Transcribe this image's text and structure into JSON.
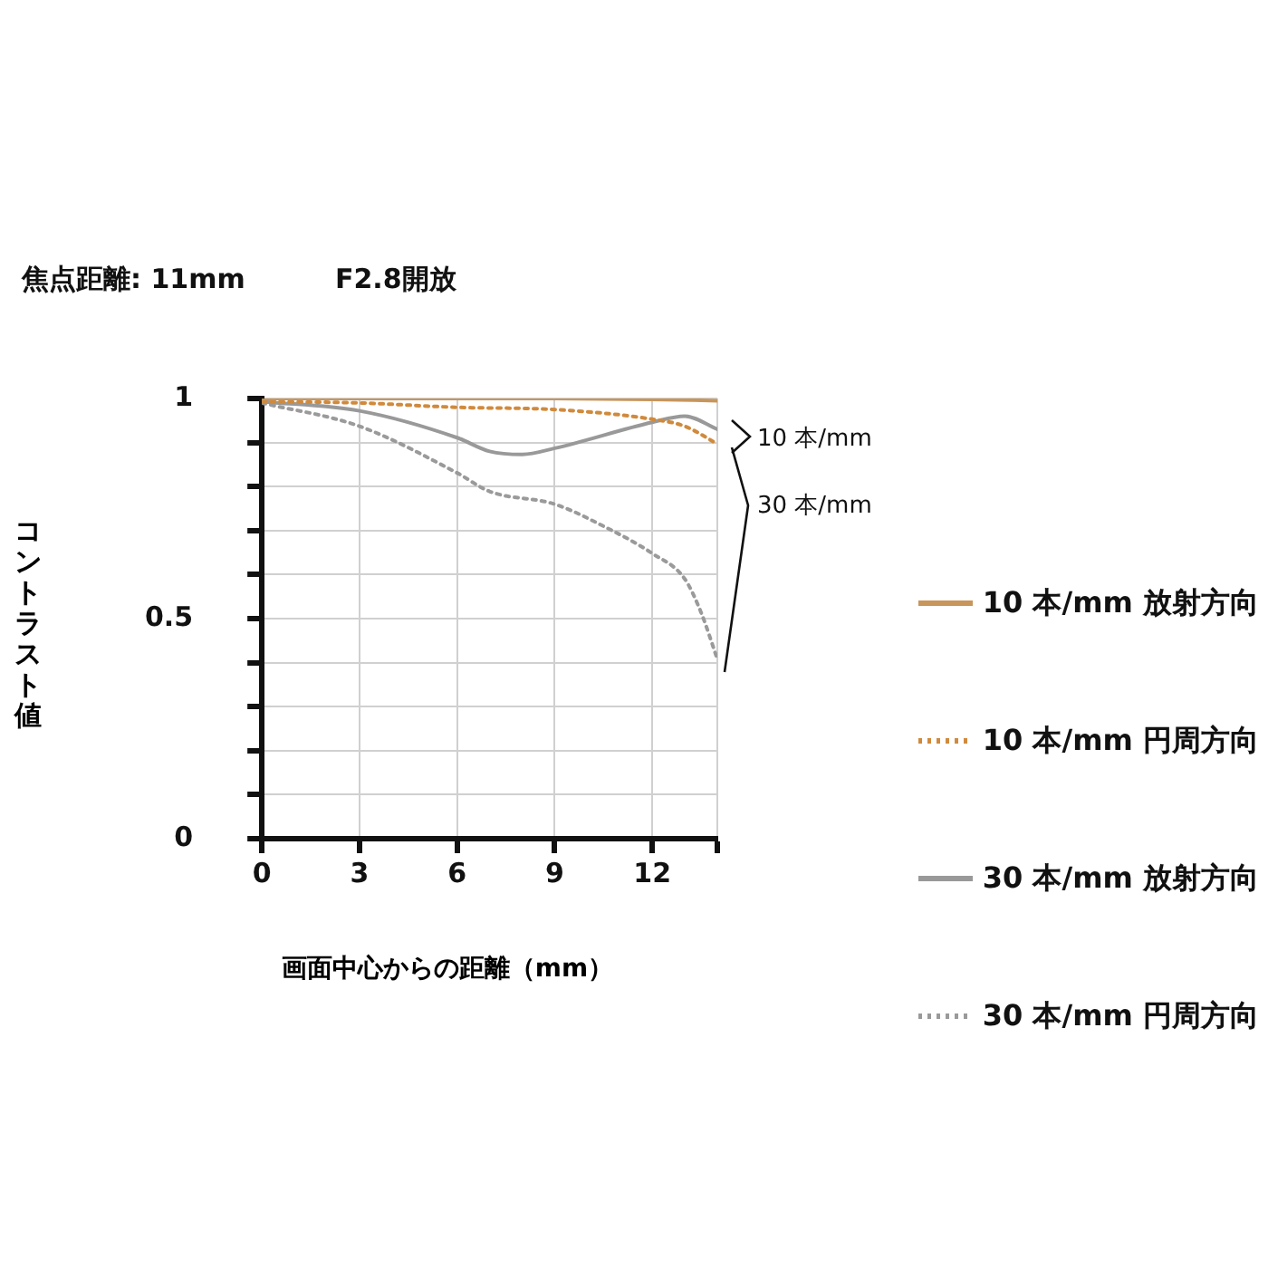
{
  "chart_data": {
    "type": "line",
    "title": "焦点距離: 11mm",
    "subtitle": "F2.8開放",
    "xlabel": "画面中心からの距離（mm）",
    "ylabel": "コントラスト値",
    "annotations": [
      "10 本/mm",
      "30 本/mm"
    ],
    "xlim": [
      0,
      14
    ],
    "xticks": [
      0,
      3,
      6,
      9,
      12,
      {
        "value": 14,
        "label": null
      }
    ],
    "ylim": [
      0,
      1
    ],
    "yticks": [
      0,
      {
        "value": 0.1,
        "label": null
      },
      {
        "value": 0.2,
        "label": null
      },
      {
        "value": 0.3,
        "label": null
      },
      {
        "value": 0.4,
        "label": null
      },
      0.5,
      {
        "value": 0.6,
        "label": null
      },
      {
        "value": 0.7,
        "label": null
      },
      {
        "value": 0.8,
        "label": null
      },
      {
        "value": 0.9,
        "label": null
      },
      1
    ],
    "grid": true,
    "legend": "right",
    "series": [
      {
        "name": "10 本/mm 放射方向",
        "color": "#c8955a",
        "line_style": "solid",
        "x": [
          0,
          3,
          6,
          9,
          12,
          14
        ],
        "values": [
          1.0,
          1.0,
          1.0,
          1.0,
          0.998,
          0.995
        ]
      },
      {
        "name": "10 本/mm 円周方向",
        "color": "#d08a3c",
        "line_style": "dotted",
        "x": [
          0,
          3,
          6,
          9,
          12,
          13,
          14
        ],
        "values": [
          0.993,
          0.99,
          0.98,
          0.975,
          0.953,
          0.937,
          0.897
        ]
      },
      {
        "name": "30 本/mm 放射方向",
        "color": "#999999",
        "line_style": "solid",
        "x": [
          0,
          3,
          6,
          7,
          8,
          9,
          12,
          13,
          14
        ],
        "values": [
          0.993,
          0.972,
          0.911,
          0.88,
          0.873,
          0.887,
          0.946,
          0.96,
          0.93
        ]
      },
      {
        "name": "30 本/mm 円周方向",
        "color": "#9a9a9a",
        "line_style": "dotted",
        "x": [
          0,
          3,
          6,
          7,
          9,
          10.5,
          12,
          13,
          13.5,
          14
        ],
        "values": [
          0.99,
          0.937,
          0.831,
          0.789,
          0.76,
          0.71,
          0.648,
          0.59,
          0.514,
          0.408
        ]
      }
    ]
  }
}
